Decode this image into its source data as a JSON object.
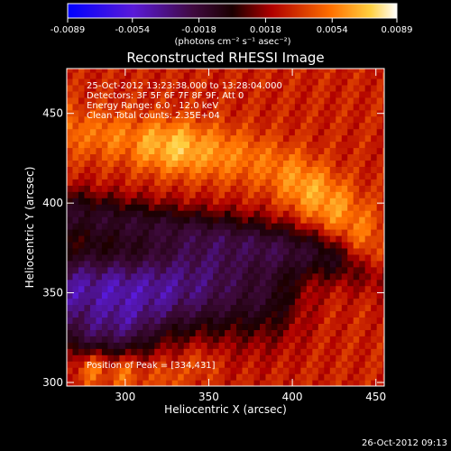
{
  "chart_data": {
    "type": "heatmap",
    "title": "Reconstructed RHESSI Image",
    "xlabel": "Heliocentric X (arcsec)",
    "ylabel": "Heliocentric Y (arcsec)",
    "xlim": [
      265,
      455
    ],
    "ylim": [
      298,
      475
    ],
    "x_ticks": [
      300,
      350,
      400,
      450
    ],
    "y_ticks": [
      300,
      350,
      400,
      450
    ],
    "x_tick_labels": [
      "300",
      "350",
      "400",
      "450"
    ],
    "y_tick_labels": [
      "300",
      "350",
      "400",
      "450"
    ],
    "colorbar": {
      "range": [
        -0.0089,
        0.0089
      ],
      "ticks": [
        -0.0089,
        -0.0054,
        -0.0018,
        0.0018,
        0.0054,
        0.0089
      ],
      "tick_labels": [
        "-0.0089",
        "-0.0054",
        "-0.0018",
        "0.0018",
        "0.0054",
        "0.0089"
      ],
      "units": "(photons cm⁻² s⁻¹ asec⁻²)",
      "colors": [
        "#0000ff",
        "#7a1fd6",
        "#3a0a10",
        "#c01010",
        "#ff7a00",
        "#ffffff"
      ]
    },
    "annotations": [
      "25-Oct-2012 13:23:38.000 to 13:28:04.000",
      "Detectors: 3F 5F 6F 7F 8F 9F, Att 0",
      "Energy Range: 6.0 - 12.0 keV",
      "Clean     Total counts: 2.35E+04"
    ],
    "peak_label": "Position of Peak = [334,431]",
    "peak": {
      "x": 334,
      "y": 431,
      "value": 0.0089
    },
    "features": {
      "bright_arc": [
        [
          265,
          440,
          0.006
        ],
        [
          290,
          438,
          0.0062
        ],
        [
          315,
          433,
          0.0075
        ],
        [
          334,
          431,
          0.0089
        ],
        [
          355,
          428,
          0.007
        ],
        [
          375,
          425,
          0.0058
        ],
        [
          395,
          418,
          0.006
        ],
        [
          410,
          408,
          0.0075
        ],
        [
          425,
          398,
          0.0072
        ],
        [
          440,
          385,
          0.006
        ],
        [
          450,
          372,
          0.0055
        ]
      ],
      "negative_region": [
        [
          270,
          352,
          -0.0055
        ],
        [
          295,
          350,
          -0.006
        ],
        [
          320,
          352,
          -0.0055
        ],
        [
          340,
          358,
          -0.0045
        ],
        [
          355,
          365,
          -0.0035
        ],
        [
          300,
          335,
          -0.005
        ],
        [
          280,
          330,
          -0.0042
        ]
      ],
      "bright_bottom": [
        [
          280,
          308,
          0.0065
        ],
        [
          300,
          305,
          0.006
        ],
        [
          325,
          303,
          0.005
        ],
        [
          345,
          310,
          0.0045
        ]
      ]
    }
  },
  "footer": {
    "timestamp": "26-Oct-2012 09:13"
  }
}
